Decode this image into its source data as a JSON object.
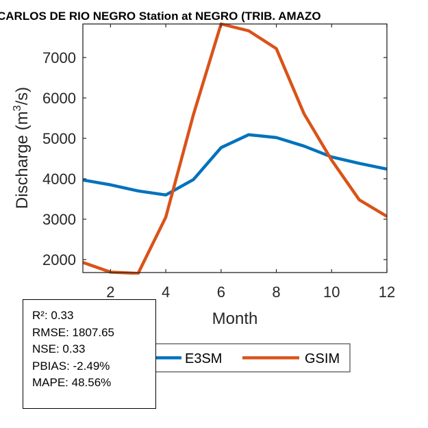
{
  "chart_data": {
    "type": "line",
    "title": "CARLOS DE RIO NEGRO  Station at  NEGRO (TRIB. AMAZO",
    "xlabel": "Month",
    "ylabel": "Discharge (m",
    "ylabel_sup": "3",
    "ylabel_suffix": "/s)",
    "xlim": [
      1,
      12
    ],
    "ylim": [
      1680,
      7830
    ],
    "xticks": [
      2,
      4,
      6,
      8,
      10,
      12
    ],
    "yticks": [
      2000,
      3000,
      4000,
      5000,
      6000,
      7000
    ],
    "grid": false,
    "legend_position": "bottom-center (outside)",
    "x": [
      1,
      2,
      3,
      4,
      5,
      6,
      7,
      8,
      9,
      10,
      11,
      12
    ],
    "series": [
      {
        "name": "E3SM",
        "color": "#0072BD",
        "values": [
          3970,
          3850,
          3700,
          3600,
          3980,
          4770,
          5090,
          5020,
          4810,
          4540,
          4380,
          4240
        ]
      },
      {
        "name": "GSIM",
        "color": "#D95319",
        "values": [
          1930,
          1690,
          1660,
          3050,
          5590,
          7830,
          7660,
          7220,
          5610,
          4460,
          3480,
          3070
        ]
      }
    ]
  },
  "stats": {
    "lines": [
      "R²: 0.33",
      "RMSE: 1807.65",
      "NSE: 0.33",
      "PBIAS: -2.49%",
      "MAPE: 48.56%"
    ]
  }
}
